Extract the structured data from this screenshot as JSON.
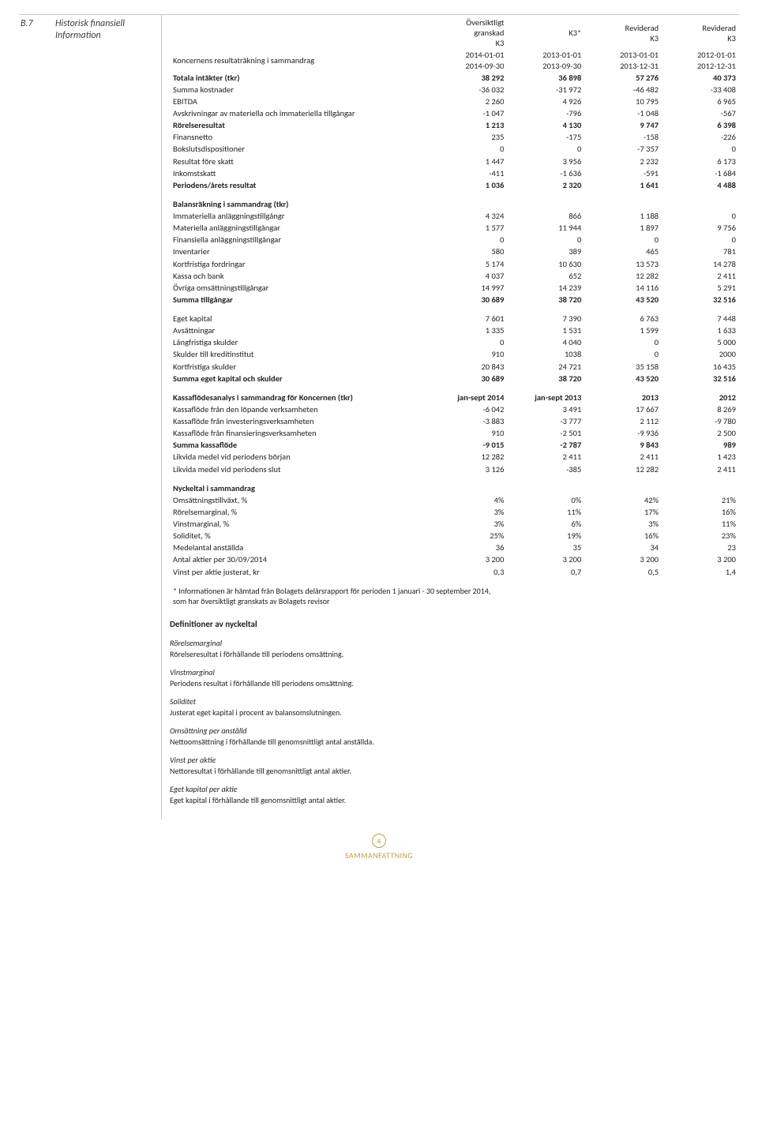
{
  "section": {
    "id": "B.7",
    "title1": "Historisk finansiell",
    "title2": "Information"
  },
  "header": {
    "c1l1": "Översiktligt",
    "c1l2": "granskad",
    "c1l3": "K3",
    "c2l1": "K3*",
    "c3l1": "Reviderad",
    "c3l2": "K3",
    "c4l1": "Reviderad",
    "c4l2": "K3",
    "subtitle": "Koncernens resultaträkning i sammandrag",
    "d1a": "2014-01-01",
    "d1b": "2014-09-30",
    "d2a": "2013-01-01",
    "d2b": "2013-09-30",
    "d3a": "2013-01-01",
    "d3b": "2013-12-31",
    "d4a": "2012-01-01",
    "d4b": "2012-12-31"
  },
  "pnl": [
    {
      "label": "Totala intäkter (tkr)",
      "bold": true,
      "v": [
        "38 292",
        "36 898",
        "57 276",
        "40 373"
      ]
    },
    {
      "label": "Summa kostnader",
      "v": [
        "-36 032",
        "-31 972",
        "-46 482",
        "-33 408"
      ]
    },
    {
      "label": "EBITDA",
      "v": [
        "2 260",
        "4 926",
        "10 795",
        "6 965"
      ]
    },
    {
      "label": "Avskrivningar av materiella och immateriella tillgångar",
      "v": [
        "-1 047",
        "-796",
        "-1 048",
        "-567"
      ]
    },
    {
      "label": "Rörelseresultat",
      "bold": true,
      "v": [
        "1 213",
        "4 130",
        "9 747",
        "6 398"
      ]
    },
    {
      "label": "Finansnetto",
      "v": [
        "235",
        "-175",
        "-158",
        "-226"
      ]
    },
    {
      "label": "Bokslutsdispositioner",
      "v": [
        "0",
        "0",
        "-7 357",
        "0"
      ]
    },
    {
      "label": "Resultat före skatt",
      "v": [
        "1 447",
        "3 956",
        "2 232",
        "6 173"
      ]
    },
    {
      "label": "Inkomstskatt",
      "v": [
        "-411",
        "-1 636",
        "-591",
        "-1 684"
      ]
    },
    {
      "label": "Periodens/årets resultat",
      "bold": true,
      "v": [
        "1 036",
        "2 320",
        "1 641",
        "4 488"
      ]
    }
  ],
  "bs_title": "Balansräkning i sammandrag (tkr)",
  "bs": [
    {
      "label": "Immateriella anläggningstillgångr",
      "v": [
        "4 324",
        "866",
        "1 188",
        "0"
      ]
    },
    {
      "label": "Materiella anläggningstillgångar",
      "v": [
        "1 577",
        "11 944",
        "1 897",
        "9 756"
      ]
    },
    {
      "label": "Finansiella anläggningstillgångar",
      "v": [
        "0",
        "0",
        "0",
        "0"
      ]
    },
    {
      "label": "Inventarier",
      "v": [
        "580",
        "389",
        "465",
        "781"
      ]
    },
    {
      "label": "Kortfristiga fordringar",
      "v": [
        "5 174",
        "10 630",
        "13 573",
        "14 278"
      ]
    },
    {
      "label": "Kassa och bank",
      "v": [
        "4 037",
        "652",
        "12 282",
        "2 411"
      ]
    },
    {
      "label": "Övriga omsättningstillgångar",
      "v": [
        "14 997",
        "14 239",
        "14 116",
        "5 291"
      ]
    },
    {
      "label": "Summa tillgångar",
      "bold": true,
      "v": [
        "30 689",
        "38 720",
        "43 520",
        "32 516"
      ]
    }
  ],
  "eq": [
    {
      "label": "Eget kapital",
      "v": [
        "7 601",
        "7 390",
        "6 763",
        "7 448"
      ]
    },
    {
      "label": "Avsättningar",
      "v": [
        "1 335",
        "1 531",
        "1 599",
        "1 633"
      ]
    },
    {
      "label": "Långfristiga skulder",
      "v": [
        "0",
        "4 040",
        "0",
        "5 000"
      ]
    },
    {
      "label": "Skulder till kreditinstitut",
      "v": [
        "910",
        "1038",
        "0",
        "2000"
      ]
    },
    {
      "label": "Kortfristiga skulder",
      "v": [
        "20 843",
        "24 721",
        "35 158",
        "16 435"
      ]
    },
    {
      "label": "Summa eget kapital och skulder",
      "bold": true,
      "v": [
        "30 689",
        "38 720",
        "43 520",
        "32 516"
      ]
    }
  ],
  "cf_title": "Kassaflödesanalys i sammandrag för Koncernen (tkr)",
  "cf_cols": [
    "jan-sept 2014",
    "jan-sept 2013",
    "2013",
    "2012"
  ],
  "cf": [
    {
      "label": "Kassaflöde från den löpande verksamheten",
      "v": [
        "-6 042",
        "3 491",
        "17 667",
        "8 269"
      ]
    },
    {
      "label": "Kassaflöde från investeringsverksamheten",
      "v": [
        "-3 883",
        "-3 777",
        "2 112",
        "-9 780"
      ]
    },
    {
      "label": "Kassaflöde från finansieringsverksamheten",
      "v": [
        "910",
        "-2 501",
        "-9 936",
        "2 500"
      ]
    },
    {
      "label": "Summa kassaflöde",
      "bold": true,
      "v": [
        "-9 015",
        "-2 787",
        "9 843",
        "989"
      ]
    },
    {
      "label": "Likvida medel vid periodens början",
      "v": [
        "12 282",
        "2 411",
        "2 411",
        "1 423"
      ]
    },
    {
      "label": "Likvida medel vid periodens slut",
      "v": [
        "3 126",
        "-385",
        "12 282",
        "2 411"
      ]
    }
  ],
  "ratio_title": "Nyckeltal i sammandrag",
  "ratios": [
    {
      "label": "Omsättningstillväxt, %",
      "v": [
        "4%",
        "0%",
        "42%",
        "21%"
      ]
    },
    {
      "label": "Rörelsemarginal, %",
      "v": [
        "3%",
        "11%",
        "17%",
        "16%"
      ]
    },
    {
      "label": "Vinstmarginal, %",
      "v": [
        "3%",
        "6%",
        "3%",
        "11%"
      ]
    },
    {
      "label": "Soliditet, %",
      "v": [
        "25%",
        "19%",
        "16%",
        "23%"
      ]
    },
    {
      "label": "Medelantal anställda",
      "v": [
        "36",
        "35",
        "34",
        "23"
      ]
    },
    {
      "label": "Antal aktier per 30/09/2014",
      "v": [
        "3 200",
        "3 200",
        "3 200",
        "3 200"
      ]
    },
    {
      "label": "Vinst per aktie justerat, kr",
      "v": [
        "0,3",
        "0,7",
        "0,5",
        "1,4"
      ]
    }
  ],
  "footnote1": "* Informationen är hämtad från Bolagets delårsrapport för perioden 1 januari - 30 september 2014,",
  "footnote2": "som har översiktligt granskats av Bolagets revisor",
  "defs_title": "Definitioner av nyckeltal",
  "defs": [
    {
      "t": "Rörelsemarginal",
      "d": "Rörelseresultat i förhållande till periodens omsättning."
    },
    {
      "t": "Vinstmarginal",
      "d": "Periodens resultat i förhållande till periodens omsättning."
    },
    {
      "t": "Soliditet",
      "d": "Justerat eget kapital i procent av balansomslutningen."
    },
    {
      "t": "Omsättning per anställd",
      "d": "Nettoomsättning i förhållande till genomsnittligt antal anställda."
    },
    {
      "t": "Vinst per aktie",
      "d": "Nettoresultat i förhållande till genomsnittligt antal aktier."
    },
    {
      "t": "Eget kapital per aktie",
      "d": "Eget kapital i förhållande till genomsnittligt antal aktier."
    }
  ],
  "footer": {
    "page": "4",
    "caption": "SAMMANFATTNING"
  }
}
